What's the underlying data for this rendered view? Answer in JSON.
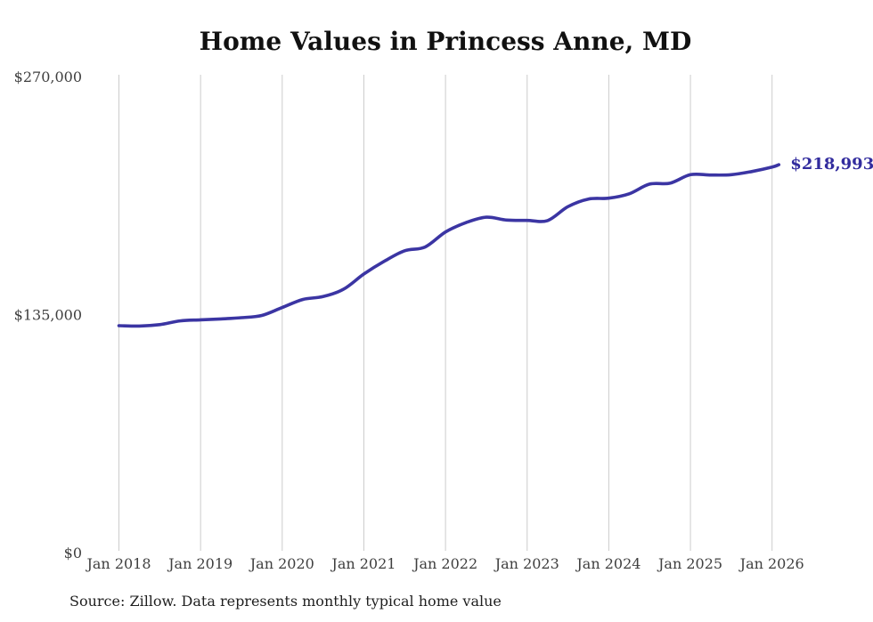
{
  "page": {
    "title": "Home Values in Princess Anne, MD",
    "source_note": "Source: Zillow. Data represents monthly typical home value"
  },
  "chart_data": {
    "type": "line",
    "title": "Home Values in Princess Anne, MD",
    "series_name": "Monthly typical home value",
    "x_tick_labels": [
      "Jan 2018",
      "Jan 2019",
      "Jan 2020",
      "Jan 2021",
      "Jan 2022",
      "Jan 2023",
      "Jan 2024",
      "Jan 2025",
      "Jan 2026"
    ],
    "y_ticks": [
      {
        "value": 0,
        "label": "$0"
      },
      {
        "value": 135000,
        "label": "$135,000"
      },
      {
        "value": 270000,
        "label": "$270,000"
      }
    ],
    "ylim": [
      0,
      270000
    ],
    "months_between_ticks": 12,
    "grid": "vertical-only",
    "legend": "none",
    "end_label": "$218,993",
    "end_value": 218993,
    "points": [
      {
        "t": 0,
        "label": "Jan 2018",
        "value": 127700
      },
      {
        "t": 3,
        "label": "Apr 2018",
        "value": 127500
      },
      {
        "t": 6,
        "label": "Jul 2018",
        "value": 128300
      },
      {
        "t": 9,
        "label": "Oct 2018",
        "value": 130400
      },
      {
        "t": 12,
        "label": "Jan 2019",
        "value": 131000
      },
      {
        "t": 15,
        "label": "Apr 2019",
        "value": 131500
      },
      {
        "t": 18,
        "label": "Jul 2019",
        "value": 132200
      },
      {
        "t": 21,
        "label": "Oct 2019",
        "value": 133500
      },
      {
        "t": 24,
        "label": "Jan 2020",
        "value": 138000
      },
      {
        "t": 27,
        "label": "Apr 2020",
        "value": 142500
      },
      {
        "t": 30,
        "label": "Jul 2020",
        "value": 144200
      },
      {
        "t": 33,
        "label": "Oct 2020",
        "value": 148300
      },
      {
        "t": 36,
        "label": "Jan 2021",
        "value": 157000
      },
      {
        "t": 39,
        "label": "Apr 2021",
        "value": 164200
      },
      {
        "t": 42,
        "label": "Jul 2021",
        "value": 170200
      },
      {
        "t": 45,
        "label": "Oct 2021",
        "value": 172300
      },
      {
        "t": 48,
        "label": "Jan 2022",
        "value": 180800
      },
      {
        "t": 51,
        "label": "Apr 2022",
        "value": 186100
      },
      {
        "t": 54,
        "label": "Jul 2022",
        "value": 189200
      },
      {
        "t": 57,
        "label": "Oct 2022",
        "value": 187600
      },
      {
        "t": 60,
        "label": "Jan 2023",
        "value": 187400
      },
      {
        "t": 63,
        "label": "Apr 2023",
        "value": 187300
      },
      {
        "t": 66,
        "label": "Jul 2023",
        "value": 195200
      },
      {
        "t": 69,
        "label": "Oct 2023",
        "value": 199500
      },
      {
        "t": 72,
        "label": "Jan 2024",
        "value": 200000
      },
      {
        "t": 75,
        "label": "Apr 2024",
        "value": 202500
      },
      {
        "t": 78,
        "label": "Jul 2024",
        "value": 208000
      },
      {
        "t": 81,
        "label": "Oct 2024",
        "value": 208500
      },
      {
        "t": 84,
        "label": "Jan 2025",
        "value": 213300
      },
      {
        "t": 87,
        "label": "Apr 2025",
        "value": 213100
      },
      {
        "t": 90,
        "label": "Jul 2025",
        "value": 213300
      },
      {
        "t": 93,
        "label": "Oct 2025",
        "value": 215100
      },
      {
        "t": 96,
        "label": "Jan 2026",
        "value": 217600
      },
      {
        "t": 97,
        "label": "Feb 2026",
        "value": 218993
      }
    ],
    "colors": {
      "line": "#3b35a3",
      "end_label": "#322c9e",
      "grid": "#cccccc",
      "axis_text": "#3f3f3f",
      "title_text": "#111111",
      "source_text": "#1f1f1f",
      "background": "#ffffff"
    }
  }
}
